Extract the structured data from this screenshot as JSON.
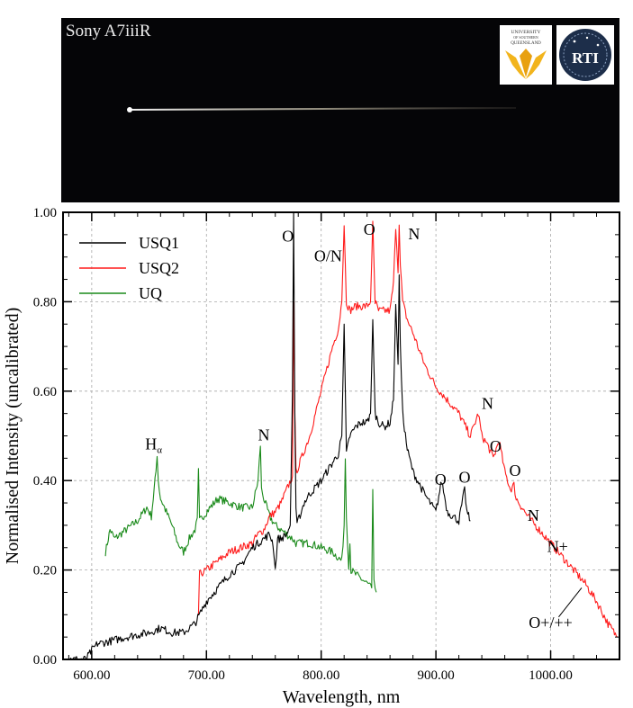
{
  "photo": {
    "title": "Sony A7iiiR",
    "logos": [
      {
        "name": "University of Southern Queensland",
        "text": "UNIVERSITY OF SOUTHERN QUEENSLAND"
      },
      {
        "name": "RTI",
        "text": "RTI"
      }
    ]
  },
  "chart_data": {
    "type": "line",
    "xlabel": "Wavelength, nm",
    "ylabel": "Normalised Intensity (uncalibrated)",
    "xlim": [
      575,
      1060
    ],
    "ylim": [
      0,
      1
    ],
    "x_ticks": [
      "600.00",
      "700.00",
      "800.00",
      "900.00",
      "1000.00"
    ],
    "y_ticks": [
      "0.00",
      "0.20",
      "0.40",
      "0.60",
      "0.80",
      "1.00"
    ],
    "grid": true,
    "legend_position": "top-left",
    "series": [
      {
        "name": "USQ1",
        "color": "#000000",
        "x": [
          575,
          595,
          600,
          605,
          615,
          630,
          650,
          660,
          670,
          680,
          690,
          700,
          710,
          720,
          730,
          740,
          745,
          750,
          755,
          758,
          760,
          762,
          765,
          770,
          773,
          775,
          776,
          777,
          778,
          779,
          780,
          785,
          790,
          800,
          810,
          815,
          818,
          820,
          822,
          825,
          830,
          835,
          840,
          843,
          845,
          847,
          850,
          855,
          860,
          863,
          865,
          867,
          868,
          869,
          871,
          875,
          880,
          890,
          900,
          905,
          910,
          920,
          925,
          927,
          930
        ],
        "y": [
          0,
          0,
          0.02,
          0.035,
          0.04,
          0.05,
          0.06,
          0.07,
          0.06,
          0.06,
          0.08,
          0.13,
          0.16,
          0.19,
          0.21,
          0.25,
          0.26,
          0.27,
          0.28,
          0.26,
          0.2,
          0.27,
          0.27,
          0.28,
          0.3,
          0.6,
          1.0,
          0.55,
          0.33,
          0.3,
          0.31,
          0.35,
          0.37,
          0.4,
          0.44,
          0.46,
          0.5,
          0.75,
          0.46,
          0.5,
          0.52,
          0.53,
          0.53,
          0.55,
          0.76,
          0.55,
          0.53,
          0.52,
          0.53,
          0.58,
          0.8,
          0.66,
          0.86,
          0.7,
          0.55,
          0.47,
          0.42,
          0.37,
          0.33,
          0.4,
          0.33,
          0.31,
          0.38,
          0.33,
          0.31
        ]
      },
      {
        "name": "USQ2",
        "color": "#ff1a1a",
        "x": [
          693,
          694,
          700,
          710,
          720,
          730,
          740,
          745,
          750,
          755,
          760,
          765,
          770,
          775,
          776,
          777,
          778,
          780,
          790,
          800,
          810,
          815,
          818,
          820,
          822,
          825,
          830,
          840,
          843,
          845,
          847,
          850,
          860,
          863,
          865,
          867,
          868,
          869,
          871,
          875,
          880,
          890,
          900,
          910,
          920,
          930,
          937,
          940,
          945,
          950,
          955,
          960,
          965,
          968,
          970,
          980,
          990,
          1000,
          1010,
          1020,
          1030,
          1040,
          1050,
          1058
        ],
        "y": [
          0.1,
          0.19,
          0.2,
          0.22,
          0.24,
          0.25,
          0.26,
          0.28,
          0.29,
          0.32,
          0.33,
          0.35,
          0.38,
          0.41,
          0.8,
          0.55,
          0.42,
          0.43,
          0.5,
          0.6,
          0.7,
          0.74,
          0.8,
          0.97,
          0.8,
          0.78,
          0.79,
          0.79,
          0.8,
          0.98,
          0.8,
          0.78,
          0.78,
          0.84,
          0.97,
          0.87,
          0.98,
          0.88,
          0.8,
          0.76,
          0.73,
          0.66,
          0.61,
          0.58,
          0.55,
          0.5,
          0.55,
          0.5,
          0.48,
          0.45,
          0.49,
          0.42,
          0.38,
          0.39,
          0.36,
          0.32,
          0.29,
          0.26,
          0.23,
          0.2,
          0.17,
          0.13,
          0.08,
          0.05
        ]
      },
      {
        "name": "UQ",
        "color": "#1a8a1a",
        "x": [
          612,
          616,
          620,
          630,
          640,
          648,
          652,
          656,
          657,
          658,
          660,
          665,
          670,
          675,
          680,
          685,
          690,
          692,
          693,
          694,
          700,
          710,
          720,
          730,
          740,
          745,
          747,
          748,
          750,
          755,
          760,
          770,
          775,
          778,
          780,
          790,
          800,
          810,
          818,
          820,
          821,
          822,
          824,
          825,
          826,
          830,
          840,
          844,
          845,
          846,
          848
        ],
        "y": [
          0.24,
          0.29,
          0.27,
          0.29,
          0.31,
          0.34,
          0.32,
          0.42,
          0.46,
          0.4,
          0.36,
          0.33,
          0.3,
          0.26,
          0.24,
          0.27,
          0.29,
          0.31,
          0.42,
          0.31,
          0.33,
          0.36,
          0.35,
          0.34,
          0.34,
          0.4,
          0.48,
          0.38,
          0.36,
          0.32,
          0.3,
          0.28,
          0.27,
          0.26,
          0.26,
          0.26,
          0.25,
          0.24,
          0.22,
          0.3,
          0.45,
          0.32,
          0.21,
          0.26,
          0.2,
          0.19,
          0.17,
          0.16,
          0.38,
          0.17,
          0.15
        ]
      }
    ],
    "annotations": [
      {
        "text": "O",
        "x": 771,
        "y": 0.935
      },
      {
        "text": "O/N",
        "x": 806,
        "y": 0.89
      },
      {
        "text": "O",
        "x": 842,
        "y": 0.95
      },
      {
        "text": "N",
        "x": 881,
        "y": 0.94
      },
      {
        "text": "N",
        "x": 750,
        "y": 0.49
      },
      {
        "text": "N",
        "x": 945,
        "y": 0.56
      },
      {
        "text": "O",
        "x": 904,
        "y": 0.39
      },
      {
        "text": "O",
        "x": 925,
        "y": 0.395
      },
      {
        "text": "O",
        "x": 952,
        "y": 0.465
      },
      {
        "text": "O",
        "x": 969,
        "y": 0.41
      },
      {
        "text": "N",
        "x": 985,
        "y": 0.31
      },
      {
        "text": "N+",
        "x": 1006,
        "y": 0.24
      },
      {
        "text": "O+/++",
        "x": 1000,
        "y": 0.07
      }
    ],
    "h_alpha_label": {
      "base": "H",
      "sub": "α",
      "x": 654,
      "y": 0.47
    }
  }
}
